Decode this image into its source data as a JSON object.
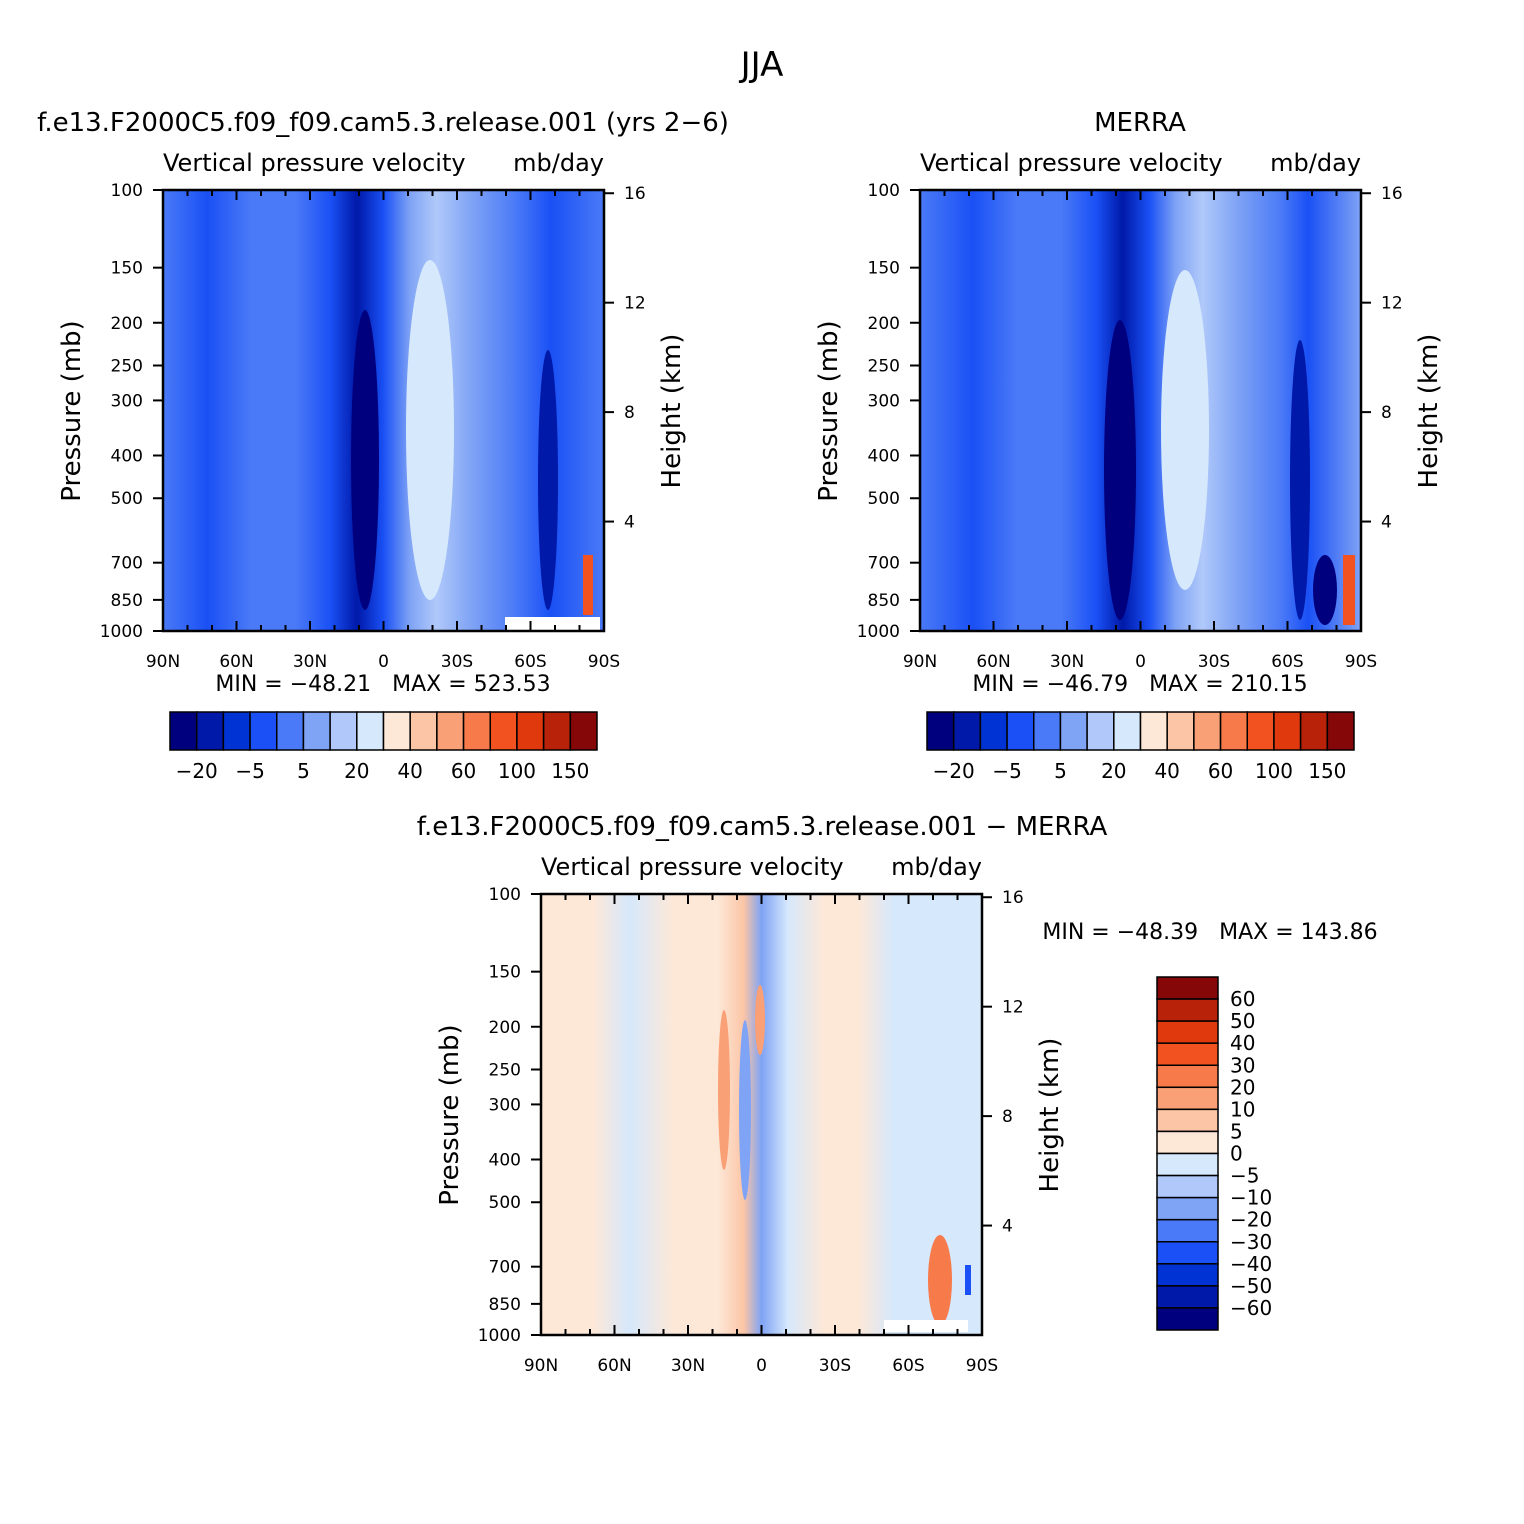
{
  "figure": {
    "season": "JJA"
  },
  "panels": [
    {
      "id": "model",
      "title": "f.e13.F2000C5.f09_f09.cam5.3.release.001 (yrs 2−6)",
      "variable": "Vertical pressure velocity",
      "units": "mb/day",
      "ylabel_left": "Pressure (mb)",
      "ylabel_right": "Height (km)",
      "stats": "MIN = −48.21   MAX = 523.53"
    },
    {
      "id": "obs",
      "title": "MERRA",
      "variable": "Vertical pressure velocity",
      "units": "mb/day",
      "ylabel_left": "Pressure (mb)",
      "ylabel_right": "Height (km)",
      "stats": "MIN = −46.79   MAX = 210.15"
    },
    {
      "id": "diff",
      "title": "f.e13.F2000C5.f09_f09.cam5.3.release.001 − MERRA",
      "variable": "Vertical pressure velocity",
      "units": "mb/day",
      "ylabel_left": "Pressure (mb)",
      "ylabel_right": "Height (km)",
      "stats": "MIN = −48.39   MAX = 143.86"
    }
  ],
  "chart_data": [
    {
      "type": "heatmap",
      "panel": "model",
      "x_ticks": [
        "90N",
        "60N",
        "30N",
        "0",
        "30S",
        "60S",
        "90S"
      ],
      "x_values": [
        90,
        60,
        30,
        0,
        -30,
        -60,
        -90
      ],
      "y_ticks": [
        "100",
        "150",
        "200",
        "250",
        "300",
        "400",
        "500",
        "700",
        "850",
        "1000"
      ],
      "y_values": [
        100,
        150,
        200,
        250,
        300,
        400,
        500,
        700,
        850,
        1000
      ],
      "y_scale": "log",
      "y_right_ticks": [
        "16",
        "12",
        "8",
        "4"
      ],
      "min": -48.21,
      "max": 523.53
    },
    {
      "type": "heatmap",
      "panel": "obs",
      "x_ticks": [
        "90N",
        "60N",
        "30N",
        "0",
        "30S",
        "60S",
        "90S"
      ],
      "x_values": [
        90,
        60,
        30,
        0,
        -30,
        -60,
        -90
      ],
      "y_ticks": [
        "100",
        "150",
        "200",
        "250",
        "300",
        "400",
        "500",
        "700",
        "850",
        "1000"
      ],
      "y_values": [
        100,
        150,
        200,
        250,
        300,
        400,
        500,
        700,
        850,
        1000
      ],
      "y_scale": "log",
      "y_right_ticks": [
        "16",
        "12",
        "8",
        "4"
      ],
      "min": -46.79,
      "max": 210.15
    },
    {
      "type": "heatmap",
      "panel": "diff",
      "x_ticks": [
        "90N",
        "60N",
        "30N",
        "0",
        "30S",
        "60S",
        "90S"
      ],
      "x_values": [
        90,
        60,
        30,
        0,
        -30,
        -60,
        -90
      ],
      "y_ticks": [
        "100",
        "150",
        "200",
        "250",
        "300",
        "400",
        "500",
        "700",
        "850",
        "1000"
      ],
      "y_values": [
        100,
        150,
        200,
        250,
        300,
        400,
        500,
        700,
        850,
        1000
      ],
      "y_scale": "log",
      "y_right_ticks": [
        "16",
        "12",
        "8",
        "4"
      ],
      "min": -48.39,
      "max": 143.86
    }
  ],
  "colorbars": {
    "main": {
      "colors": [
        "#00007f",
        "#0019a8",
        "#0033d4",
        "#1a50f5",
        "#4a7af7",
        "#7fa3f5",
        "#b0c9fa",
        "#d6e8fc",
        "#fde8d8",
        "#fcc5a6",
        "#f9a076",
        "#f77a4a",
        "#f2521f",
        "#e0390e",
        "#b82209",
        "#850707"
      ],
      "labels": [
        "−20",
        "−5",
        "5",
        "20",
        "40",
        "60",
        "100",
        "150"
      ]
    },
    "diff": {
      "colors": [
        "#850707",
        "#b82209",
        "#e0390e",
        "#f2521f",
        "#f77a4a",
        "#f9a076",
        "#fcc5a6",
        "#fde8d8",
        "#d6e8fc",
        "#b0c9fa",
        "#7fa3f5",
        "#4a7af7",
        "#1a50f5",
        "#0033d4",
        "#0019a8",
        "#00007f"
      ],
      "labels": [
        "60",
        "50",
        "40",
        "30",
        "20",
        "10",
        "5",
        "0",
        "−5",
        "−10",
        "−20",
        "−30",
        "−40",
        "−50",
        "−60"
      ]
    }
  }
}
